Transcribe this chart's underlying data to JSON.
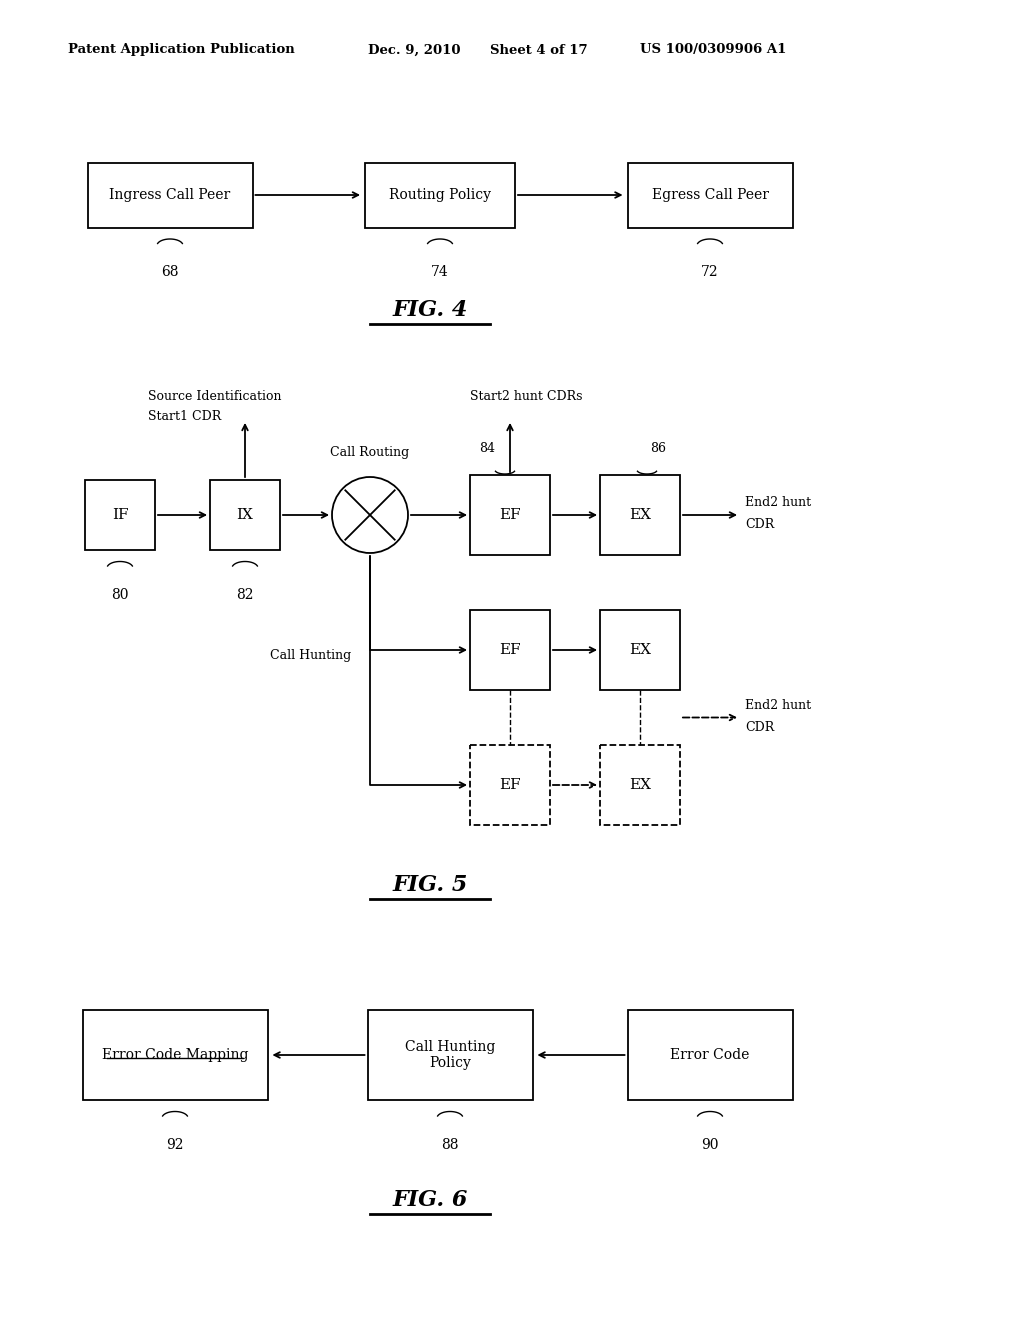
{
  "bg_color": "#ffffff",
  "header_left": "Patent Application Publication",
  "header_date": "Dec. 9, 2010",
  "header_sheet": "Sheet 4 of 17",
  "header_patent": "US 100/0309906 A1",
  "fig4_title": "FIG. 4",
  "fig5_title": "FIG. 5",
  "fig6_title": "FIG. 6"
}
